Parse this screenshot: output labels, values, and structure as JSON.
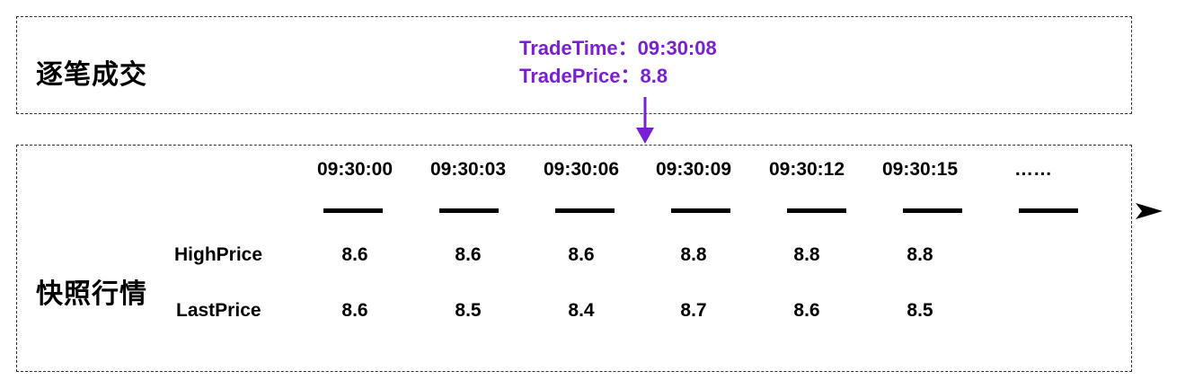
{
  "tick_section": {
    "title": "逐笔成交",
    "trade_time_label": "TradeTime：",
    "trade_time_value": "09:30:08",
    "trade_price_label": "TradePrice：",
    "trade_price_value": "8.8"
  },
  "snapshot_section": {
    "title": "快照行情",
    "times": [
      "09:30:00",
      "09:30:03",
      "09:30:06",
      "09:30:09",
      "09:30:12",
      "09:30:15",
      "……"
    ],
    "high_label": "HighPrice",
    "last_label": "LastPrice",
    "high_prices": [
      "8.6",
      "8.6",
      "8.6",
      "8.8",
      "8.8",
      "8.8"
    ],
    "last_prices": [
      "8.6",
      "8.5",
      "8.4",
      "8.7",
      "8.6",
      "8.5"
    ]
  },
  "colors": {
    "accent": "#7a1fd3",
    "text": "#000000",
    "border": "#333333"
  }
}
